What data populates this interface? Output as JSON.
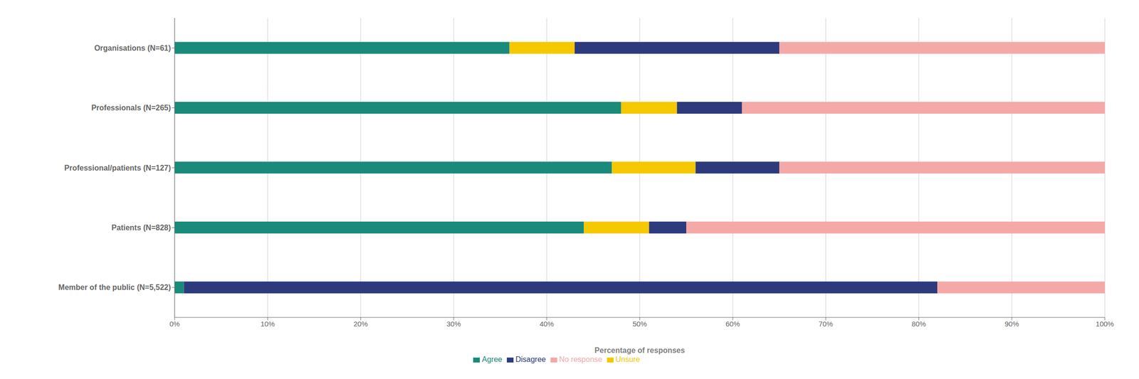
{
  "chart_data": {
    "type": "bar",
    "orientation": "horizontal",
    "stacked": true,
    "categories": [
      "Member of the public (N=5,522)",
      "Patients (N=828)",
      "Professional/patients (N=127)",
      "Professionals (N=265)",
      "Organisations (N=61)"
    ],
    "series": [
      {
        "name": "Agree",
        "color": "#1a8a7a",
        "values": [
          1,
          44,
          47,
          48,
          36
        ]
      },
      {
        "name": "Unsure",
        "color": "#f5c800",
        "values": [
          0,
          7,
          9,
          6,
          7
        ]
      },
      {
        "name": "Disagree",
        "color": "#2d3a7c",
        "values": [
          81,
          4,
          9,
          7,
          22
        ]
      },
      {
        "name": "No response",
        "color": "#f4a9a8",
        "values": [
          18,
          45,
          35,
          39,
          35
        ]
      }
    ],
    "xlabel": "Percentage of responses",
    "xlim": [
      0,
      100
    ],
    "xticks": [
      {
        "value": 0,
        "label": "0%"
      },
      {
        "value": 10,
        "label": "10%"
      },
      {
        "value": 20,
        "label": "20%"
      },
      {
        "value": 30,
        "label": "30%"
      },
      {
        "value": 40,
        "label": "40%"
      },
      {
        "value": 50,
        "label": "50%"
      },
      {
        "value": 60,
        "label": "60%"
      },
      {
        "value": 70,
        "label": "70%"
      },
      {
        "value": 80,
        "label": "80%"
      },
      {
        "value": 90,
        "label": "90%"
      },
      {
        "value": 100,
        "label": "100%"
      }
    ],
    "grid": true,
    "legend": "bottom"
  }
}
